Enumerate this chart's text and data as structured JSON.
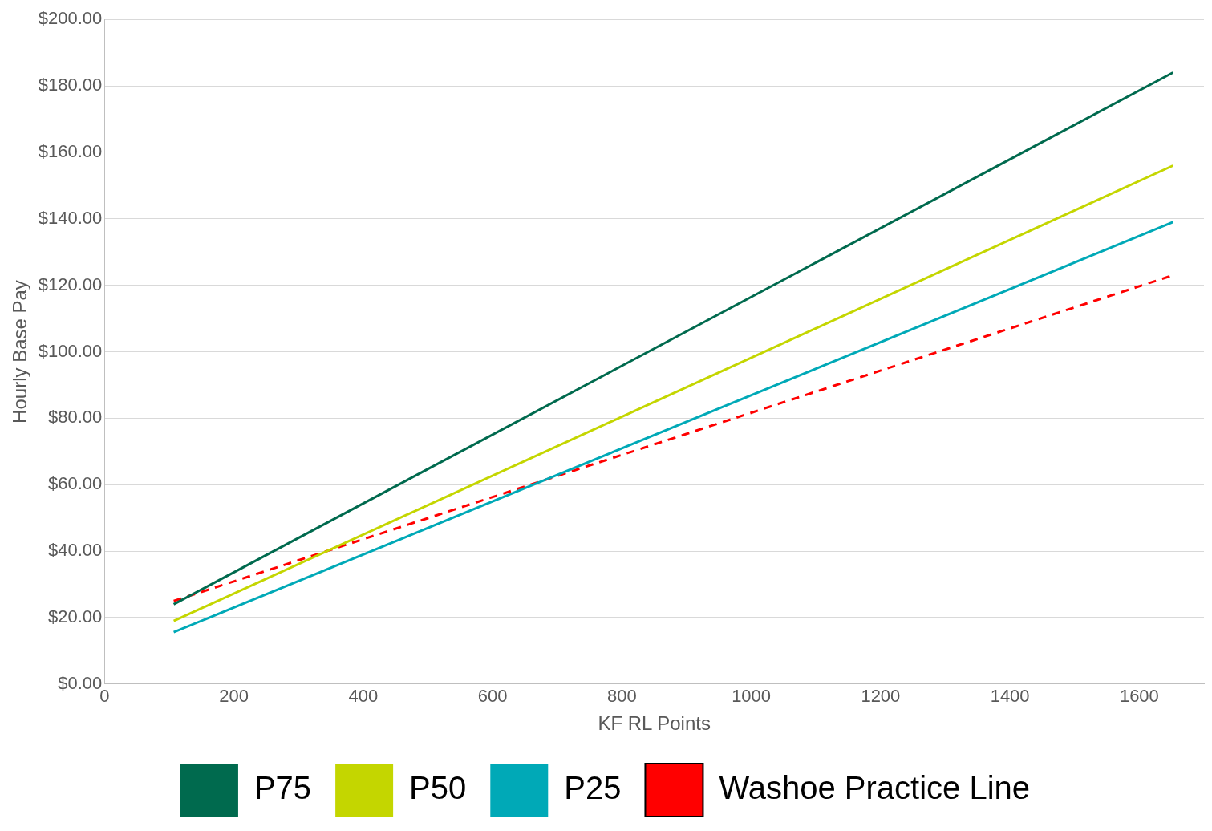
{
  "chart_data": {
    "type": "line",
    "xlabel": "KF RL Points",
    "ylabel": "Hourly Base Pay",
    "xlim": [
      0,
      1700
    ],
    "xticks": [
      0,
      200,
      400,
      600,
      800,
      1000,
      1200,
      1400,
      1600
    ],
    "ylim": [
      0,
      200
    ],
    "yticks": [
      {
        "value": 0,
        "label": "$0.00"
      },
      {
        "value": 20,
        "label": "$20.00"
      },
      {
        "value": 40,
        "label": "$40.00"
      },
      {
        "value": 60,
        "label": "$60.00"
      },
      {
        "value": 80,
        "label": "$80.00"
      },
      {
        "value": 100,
        "label": "$100.00"
      },
      {
        "value": 120,
        "label": "$120.00"
      },
      {
        "value": 140,
        "label": "$140.00"
      },
      {
        "value": 160,
        "label": "$160.00"
      },
      {
        "value": 180,
        "label": "$180.00"
      },
      {
        "value": 200,
        "label": "$200.00"
      }
    ],
    "grid": "y",
    "legend": "bottom",
    "marker": "none",
    "x": [
      107,
      1652
    ],
    "series": [
      {
        "name": "P75",
        "color": "#006a4e",
        "values": [
          24,
          184
        ]
      },
      {
        "name": "P50",
        "color": "#c4d600",
        "values": [
          19,
          156
        ]
      },
      {
        "name": "P25",
        "color": "#00a9b7",
        "values": [
          15.6,
          139
        ]
      },
      {
        "name": "Washoe Practice Line",
        "color": "#ff0000",
        "values": [
          25,
          123
        ],
        "line_style": "dashed"
      }
    ]
  }
}
